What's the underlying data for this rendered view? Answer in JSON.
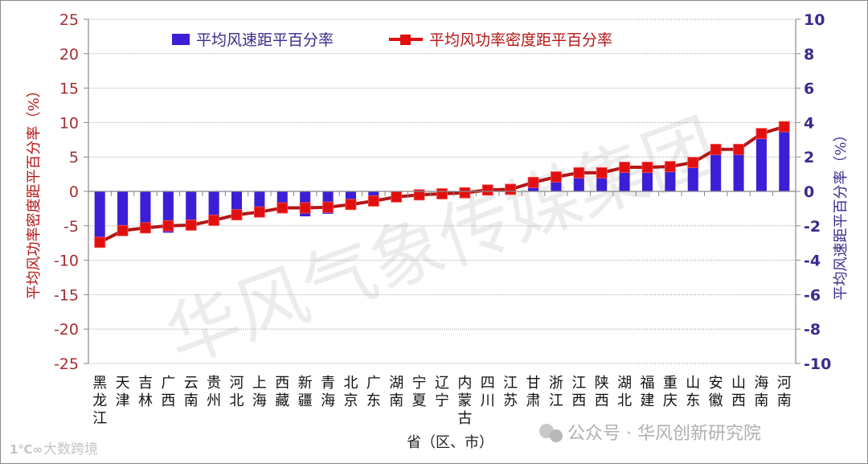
{
  "chart_data": {
    "type": "bar+line",
    "title": "",
    "xlabel": "省（区、市）",
    "ylabel_left": "平均风功率密度距平百分率（%）",
    "ylabel_right": "平均风速距平百分率（%）",
    "ylim_left": [
      -25,
      25
    ],
    "yticks_left": [
      25,
      20,
      15,
      10,
      5,
      0,
      -5,
      -10,
      -15,
      -20,
      -25
    ],
    "ylim_right": [
      -10,
      10
    ],
    "yticks_right": [
      10,
      8,
      6,
      4,
      2,
      0,
      -2,
      -4,
      -6,
      -8,
      -10
    ],
    "grid": true,
    "legend_position": "top",
    "categories": [
      "黑龙江",
      "天津",
      "吉林",
      "广西",
      "云南",
      "贵州",
      "河北",
      "上海",
      "西藏",
      "新疆",
      "青海",
      "北京",
      "广东",
      "湖南",
      "宁夏",
      "辽宁",
      "内蒙古",
      "四川",
      "江苏",
      "甘肃",
      "浙江",
      "江西",
      "陕西",
      "湖北",
      "福建",
      "重庆",
      "山东",
      "安徽",
      "山西",
      "海南",
      "河南"
    ],
    "series": [
      {
        "name": "平均风速距平百分率",
        "type": "bar",
        "axis": "right",
        "color": "#3a1fd6",
        "values": [
          -2.7,
          -2.1,
          -2.0,
          -2.4,
          -1.9,
          -1.6,
          -1.2,
          -1.1,
          -0.85,
          -1.45,
          -1.3,
          -0.7,
          -0.35,
          -0.1,
          0.0,
          0.0,
          0.0,
          0.0,
          0.0,
          0.3,
          0.55,
          0.85,
          0.8,
          1.15,
          1.15,
          1.2,
          1.4,
          2.25,
          2.25,
          3.1,
          3.55
        ]
      },
      {
        "name": "平均风功率密度距平百分率",
        "type": "line",
        "axis": "left",
        "color": "#e01010",
        "values": [
          -7.4,
          -5.7,
          -5.3,
          -5.0,
          -4.9,
          -4.2,
          -3.4,
          -3.0,
          -2.4,
          -2.4,
          -2.3,
          -1.9,
          -1.4,
          -0.8,
          -0.5,
          -0.35,
          -0.2,
          0.2,
          0.3,
          1.3,
          2.1,
          2.7,
          2.7,
          3.5,
          3.5,
          3.6,
          4.2,
          6.1,
          6.1,
          8.4,
          9.4
        ]
      }
    ]
  },
  "legend": {
    "bar_label": "平均风速距平百分率",
    "line_label": "平均风功率密度距平百分率"
  },
  "axes": {
    "left_title": "平均风功率密度距平百分率（%）",
    "right_title": "平均风速距平百分率（%）",
    "x_title": "省（区、市）"
  },
  "watermarks": {
    "diagonal": "华风气象传媒集团",
    "wechat": "公众号 · 华风创新研究院",
    "corner": "大数跨境"
  },
  "colors": {
    "bar": "#3a1fd6",
    "line": "#e01010",
    "line_dark": "#b51515",
    "left_axis_text": "#a03030",
    "right_axis_text": "#3a2a8c"
  }
}
